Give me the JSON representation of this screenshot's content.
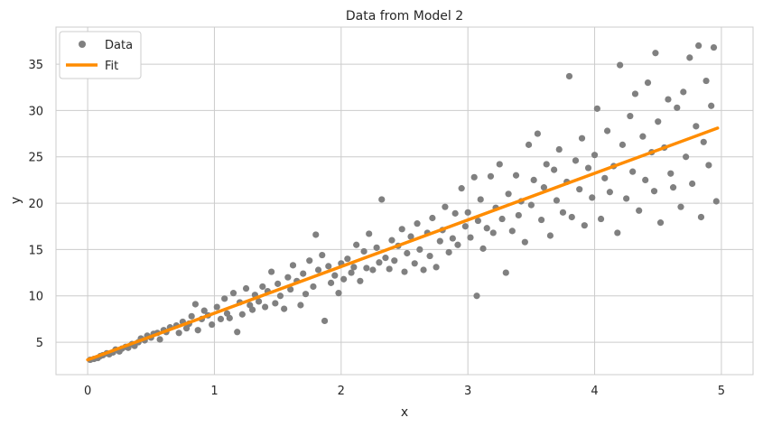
{
  "chart_data": {
    "type": "scatter",
    "title": "Data from Model 2",
    "xlabel": "x",
    "ylabel": "y",
    "xlim": [
      -0.25,
      5.25
    ],
    "ylim": [
      1.5,
      39
    ],
    "x_ticks": [
      0,
      1,
      2,
      3,
      4,
      5
    ],
    "y_ticks": [
      5,
      10,
      15,
      20,
      25,
      30,
      35
    ],
    "grid": true,
    "legend_position": "top-left",
    "colors": {
      "data": "#808080",
      "fit": "#ff8c00",
      "grid": "#cccccc",
      "background": "#ffffff"
    },
    "series": [
      {
        "name": "Data",
        "kind": "scatter",
        "points": [
          [
            0.02,
            3.1
          ],
          [
            0.05,
            3.2
          ],
          [
            0.08,
            3.3
          ],
          [
            0.1,
            3.5
          ],
          [
            0.12,
            3.6
          ],
          [
            0.15,
            3.8
          ],
          [
            0.17,
            3.7
          ],
          [
            0.2,
            3.9
          ],
          [
            0.22,
            4.2
          ],
          [
            0.25,
            4.0
          ],
          [
            0.27,
            4.3
          ],
          [
            0.3,
            4.5
          ],
          [
            0.32,
            4.4
          ],
          [
            0.35,
            4.8
          ],
          [
            0.37,
            4.6
          ],
          [
            0.4,
            5.0
          ],
          [
            0.42,
            5.4
          ],
          [
            0.45,
            5.2
          ],
          [
            0.47,
            5.7
          ],
          [
            0.5,
            5.5
          ],
          [
            0.52,
            5.9
          ],
          [
            0.55,
            6.0
          ],
          [
            0.57,
            5.3
          ],
          [
            0.6,
            6.3
          ],
          [
            0.62,
            6.1
          ],
          [
            0.65,
            6.6
          ],
          [
            0.7,
            6.8
          ],
          [
            0.72,
            6.0
          ],
          [
            0.75,
            7.2
          ],
          [
            0.78,
            6.5
          ],
          [
            0.8,
            7.0
          ],
          [
            0.82,
            7.8
          ],
          [
            0.85,
            9.1
          ],
          [
            0.87,
            6.3
          ],
          [
            0.9,
            7.5
          ],
          [
            0.92,
            8.4
          ],
          [
            0.95,
            7.9
          ],
          [
            0.98,
            6.9
          ],
          [
            1.02,
            8.8
          ],
          [
            1.05,
            7.5
          ],
          [
            1.08,
            9.7
          ],
          [
            1.1,
            8.1
          ],
          [
            1.12,
            7.6
          ],
          [
            1.15,
            10.3
          ],
          [
            1.18,
            6.1
          ],
          [
            1.2,
            9.3
          ],
          [
            1.22,
            8.0
          ],
          [
            1.25,
            10.8
          ],
          [
            1.28,
            9.0
          ],
          [
            1.3,
            8.5
          ],
          [
            1.32,
            10.1
          ],
          [
            1.35,
            9.4
          ],
          [
            1.38,
            11.0
          ],
          [
            1.4,
            8.8
          ],
          [
            1.42,
            10.5
          ],
          [
            1.45,
            12.6
          ],
          [
            1.48,
            9.2
          ],
          [
            1.5,
            11.3
          ],
          [
            1.52,
            10.0
          ],
          [
            1.55,
            8.6
          ],
          [
            1.58,
            12.0
          ],
          [
            1.6,
            10.7
          ],
          [
            1.62,
            13.3
          ],
          [
            1.65,
            11.6
          ],
          [
            1.68,
            9.0
          ],
          [
            1.7,
            12.4
          ],
          [
            1.72,
            10.2
          ],
          [
            1.75,
            13.8
          ],
          [
            1.78,
            11.0
          ],
          [
            1.8,
            16.6
          ],
          [
            1.82,
            12.8
          ],
          [
            1.85,
            14.4
          ],
          [
            1.87,
            7.3
          ],
          [
            1.9,
            13.2
          ],
          [
            1.92,
            11.4
          ],
          [
            1.95,
            12.2
          ],
          [
            1.98,
            10.3
          ],
          [
            2.0,
            13.5
          ],
          [
            2.02,
            11.8
          ],
          [
            2.05,
            14.0
          ],
          [
            2.08,
            12.5
          ],
          [
            2.1,
            13.1
          ],
          [
            2.12,
            15.5
          ],
          [
            2.15,
            11.6
          ],
          [
            2.18,
            14.8
          ],
          [
            2.2,
            13.0
          ],
          [
            2.22,
            16.7
          ],
          [
            2.25,
            12.8
          ],
          [
            2.28,
            15.2
          ],
          [
            2.3,
            13.6
          ],
          [
            2.32,
            20.4
          ],
          [
            2.35,
            14.1
          ],
          [
            2.38,
            12.9
          ],
          [
            2.4,
            16.0
          ],
          [
            2.42,
            13.8
          ],
          [
            2.45,
            15.4
          ],
          [
            2.48,
            17.2
          ],
          [
            2.5,
            12.6
          ],
          [
            2.52,
            14.6
          ],
          [
            2.55,
            16.4
          ],
          [
            2.58,
            13.5
          ],
          [
            2.6,
            17.8
          ],
          [
            2.62,
            15.0
          ],
          [
            2.65,
            12.8
          ],
          [
            2.68,
            16.8
          ],
          [
            2.7,
            14.3
          ],
          [
            2.72,
            18.4
          ],
          [
            2.75,
            13.1
          ],
          [
            2.78,
            15.9
          ],
          [
            2.8,
            17.1
          ],
          [
            2.82,
            19.6
          ],
          [
            2.85,
            14.7
          ],
          [
            2.88,
            16.2
          ],
          [
            2.9,
            18.9
          ],
          [
            2.92,
            15.5
          ],
          [
            2.95,
            21.6
          ],
          [
            2.98,
            17.5
          ],
          [
            3.0,
            19.0
          ],
          [
            3.02,
            16.3
          ],
          [
            3.05,
            22.8
          ],
          [
            3.07,
            10.0
          ],
          [
            3.08,
            18.1
          ],
          [
            3.1,
            20.4
          ],
          [
            3.12,
            15.1
          ],
          [
            3.15,
            17.3
          ],
          [
            3.18,
            22.9
          ],
          [
            3.2,
            16.8
          ],
          [
            3.22,
            19.5
          ],
          [
            3.25,
            24.2
          ],
          [
            3.27,
            18.3
          ],
          [
            3.3,
            12.5
          ],
          [
            3.32,
            21.0
          ],
          [
            3.35,
            17.0
          ],
          [
            3.38,
            23.0
          ],
          [
            3.4,
            18.7
          ],
          [
            3.42,
            20.2
          ],
          [
            3.45,
            15.8
          ],
          [
            3.48,
            26.3
          ],
          [
            3.5,
            19.8
          ],
          [
            3.52,
            22.5
          ],
          [
            3.55,
            27.5
          ],
          [
            3.58,
            18.2
          ],
          [
            3.6,
            21.7
          ],
          [
            3.62,
            24.2
          ],
          [
            3.65,
            16.5
          ],
          [
            3.68,
            23.6
          ],
          [
            3.7,
            20.3
          ],
          [
            3.72,
            25.8
          ],
          [
            3.75,
            19.0
          ],
          [
            3.78,
            22.3
          ],
          [
            3.8,
            33.7
          ],
          [
            3.82,
            18.5
          ],
          [
            3.85,
            24.6
          ],
          [
            3.88,
            21.5
          ],
          [
            3.9,
            27.0
          ],
          [
            3.92,
            17.6
          ],
          [
            3.95,
            23.8
          ],
          [
            3.98,
            20.6
          ],
          [
            4.0,
            25.2
          ],
          [
            4.02,
            30.2
          ],
          [
            4.05,
            18.3
          ],
          [
            4.08,
            22.7
          ],
          [
            4.1,
            27.8
          ],
          [
            4.12,
            21.2
          ],
          [
            4.15,
            24.0
          ],
          [
            4.18,
            16.8
          ],
          [
            4.2,
            34.9
          ],
          [
            4.22,
            26.3
          ],
          [
            4.25,
            20.5
          ],
          [
            4.28,
            29.4
          ],
          [
            4.3,
            23.4
          ],
          [
            4.32,
            31.8
          ],
          [
            4.35,
            19.2
          ],
          [
            4.38,
            27.2
          ],
          [
            4.4,
            22.5
          ],
          [
            4.42,
            33.0
          ],
          [
            4.45,
            25.5
          ],
          [
            4.47,
            21.3
          ],
          [
            4.48,
            36.2
          ],
          [
            4.5,
            28.8
          ],
          [
            4.52,
            17.9
          ],
          [
            4.55,
            26.0
          ],
          [
            4.58,
            31.2
          ],
          [
            4.6,
            23.2
          ],
          [
            4.62,
            21.7
          ],
          [
            4.65,
            30.3
          ],
          [
            4.68,
            19.6
          ],
          [
            4.7,
            32.0
          ],
          [
            4.72,
            25.0
          ],
          [
            4.75,
            35.7
          ],
          [
            4.77,
            22.1
          ],
          [
            4.8,
            28.3
          ],
          [
            4.82,
            37.0
          ],
          [
            4.84,
            18.5
          ],
          [
            4.86,
            26.6
          ],
          [
            4.88,
            33.2
          ],
          [
            4.9,
            24.1
          ],
          [
            4.92,
            30.5
          ],
          [
            4.94,
            36.8
          ],
          [
            4.96,
            20.2
          ]
        ]
      },
      {
        "name": "Fit",
        "kind": "line",
        "points": [
          [
            0.0,
            3.1
          ],
          [
            4.97,
            28.1
          ]
        ]
      }
    ]
  }
}
